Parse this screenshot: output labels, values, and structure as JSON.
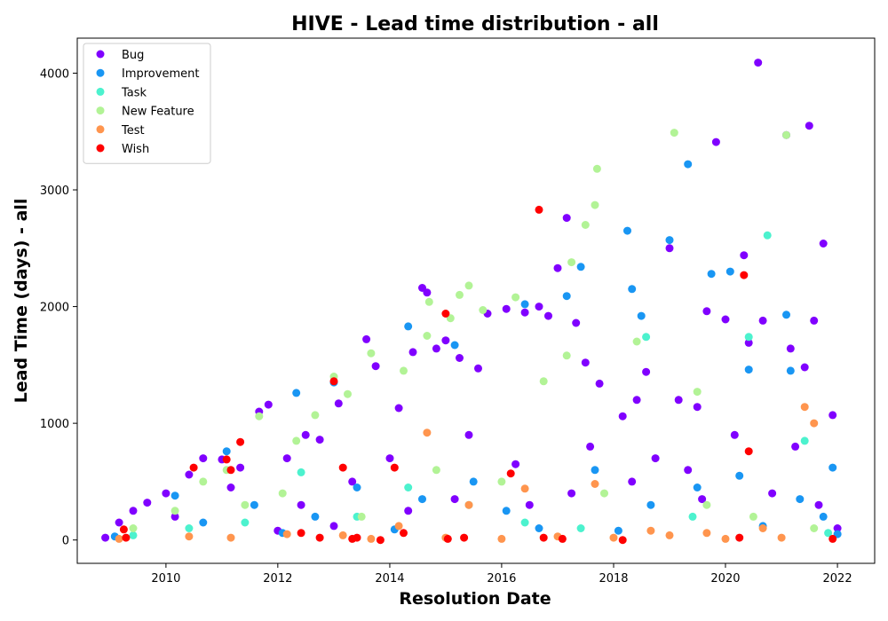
{
  "chart_data": {
    "type": "scatter",
    "title": "HIVE - Lead time distribution - all",
    "xlabel": "Resolution Date",
    "ylabel": "Lead Time (days) - all",
    "x_is_date": true,
    "xlim": [
      "2008-06-01",
      "2022-09-01"
    ],
    "ylim": [
      -200,
      4300
    ],
    "xticks": [
      "2010",
      "2012",
      "2014",
      "2016",
      "2018",
      "2020",
      "2022"
    ],
    "yticks": [
      "0",
      "1000",
      "2000",
      "3000",
      "4000"
    ],
    "grid": false,
    "legend_position": "top-left",
    "series": [
      {
        "name": "Bug",
        "color": "#8000ff",
        "points": [
          [
            "2008-12-01",
            20
          ],
          [
            "2009-03-01",
            150
          ],
          [
            "2009-06-01",
            250
          ],
          [
            "2009-09-01",
            320
          ],
          [
            "2010-01-01",
            400
          ],
          [
            "2010-06-01",
            560
          ],
          [
            "2010-09-01",
            700
          ],
          [
            "2011-01-01",
            690
          ],
          [
            "2011-05-01",
            620
          ],
          [
            "2011-09-01",
            1100
          ],
          [
            "2011-11-01",
            1160
          ],
          [
            "2012-03-01",
            700
          ],
          [
            "2012-07-01",
            900
          ],
          [
            "2012-10-01",
            860
          ],
          [
            "2013-02-01",
            1170
          ],
          [
            "2013-08-01",
            1720
          ],
          [
            "2013-10-01",
            1490
          ],
          [
            "2014-03-01",
            1130
          ],
          [
            "2014-06-01",
            1610
          ],
          [
            "2014-08-01",
            2160
          ],
          [
            "2014-09-01",
            2120
          ],
          [
            "2014-11-01",
            1640
          ],
          [
            "2015-01-01",
            1710
          ],
          [
            "2015-04-01",
            1560
          ],
          [
            "2015-08-01",
            1470
          ],
          [
            "2015-10-01",
            1940
          ],
          [
            "2016-02-01",
            1980
          ],
          [
            "2016-06-01",
            1950
          ],
          [
            "2016-09-01",
            2000
          ],
          [
            "2016-11-01",
            1920
          ],
          [
            "2017-01-01",
            2330
          ],
          [
            "2017-03-01",
            2760
          ],
          [
            "2017-05-01",
            1860
          ],
          [
            "2017-07-01",
            1520
          ],
          [
            "2017-10-01",
            1340
          ],
          [
            "2018-03-01",
            1060
          ],
          [
            "2018-06-01",
            1200
          ],
          [
            "2018-08-01",
            1440
          ],
          [
            "2019-01-01",
            2500
          ],
          [
            "2019-03-01",
            1200
          ],
          [
            "2019-07-01",
            1140
          ],
          [
            "2019-09-01",
            1960
          ],
          [
            "2019-11-01",
            3410
          ],
          [
            "2020-01-01",
            1890
          ],
          [
            "2020-05-01",
            2440
          ],
          [
            "2020-06-01",
            1690
          ],
          [
            "2020-08-01",
            4090
          ],
          [
            "2020-09-01",
            1880
          ],
          [
            "2021-02-01",
            3470
          ],
          [
            "2021-03-01",
            1640
          ],
          [
            "2021-06-01",
            1480
          ],
          [
            "2021-07-01",
            3550
          ],
          [
            "2021-08-01",
            1880
          ],
          [
            "2021-10-01",
            2540
          ],
          [
            "2021-12-01",
            1070
          ],
          [
            "2010-03-01",
            200
          ],
          [
            "2011-03-01",
            450
          ],
          [
            "2012-06-01",
            300
          ],
          [
            "2013-05-01",
            500
          ],
          [
            "2014-01-01",
            700
          ],
          [
            "2015-06-01",
            900
          ],
          [
            "2016-04-01",
            650
          ],
          [
            "2017-08-01",
            800
          ],
          [
            "2018-10-01",
            700
          ],
          [
            "2019-05-01",
            600
          ],
          [
            "2020-03-01",
            900
          ],
          [
            "2021-04-01",
            800
          ],
          [
            "2012-01-01",
            80
          ],
          [
            "2013-01-01",
            120
          ],
          [
            "2014-05-01",
            250
          ],
          [
            "2015-03-01",
            350
          ],
          [
            "2016-07-01",
            300
          ],
          [
            "2017-04-01",
            400
          ],
          [
            "2018-05-01",
            500
          ],
          [
            "2019-08-01",
            350
          ],
          [
            "2020-11-01",
            400
          ],
          [
            "2021-09-01",
            300
          ],
          [
            "2022-01-01",
            100
          ]
        ]
      },
      {
        "name": "Improvement",
        "color": "#1996f3",
        "points": [
          [
            "2009-02-01",
            30
          ],
          [
            "2010-03-01",
            380
          ],
          [
            "2011-02-01",
            760
          ],
          [
            "2012-05-01",
            1260
          ],
          [
            "2013-01-01",
            1350
          ],
          [
            "2014-05-01",
            1830
          ],
          [
            "2015-03-01",
            1670
          ],
          [
            "2016-06-01",
            2020
          ],
          [
            "2017-06-01",
            2340
          ],
          [
            "2017-03-01",
            2090
          ],
          [
            "2018-04-01",
            2650
          ],
          [
            "2018-05-01",
            2150
          ],
          [
            "2018-07-01",
            1920
          ],
          [
            "2019-01-01",
            2570
          ],
          [
            "2019-05-01",
            3220
          ],
          [
            "2019-10-01",
            2280
          ],
          [
            "2020-02-01",
            2300
          ],
          [
            "2020-06-01",
            1460
          ],
          [
            "2021-02-01",
            1930
          ],
          [
            "2021-03-01",
            1450
          ],
          [
            "2021-12-01",
            620
          ],
          [
            "2022-01-01",
            50
          ],
          [
            "2010-09-01",
            150
          ],
          [
            "2011-08-01",
            300
          ],
          [
            "2012-09-01",
            200
          ],
          [
            "2013-06-01",
            450
          ],
          [
            "2014-08-01",
            350
          ],
          [
            "2015-07-01",
            500
          ],
          [
            "2016-02-01",
            250
          ],
          [
            "2017-09-01",
            600
          ],
          [
            "2018-09-01",
            300
          ],
          [
            "2019-07-01",
            450
          ],
          [
            "2020-04-01",
            550
          ],
          [
            "2021-05-01",
            350
          ],
          [
            "2012-02-01",
            60
          ],
          [
            "2014-02-01",
            90
          ],
          [
            "2016-09-01",
            100
          ],
          [
            "2018-02-01",
            80
          ],
          [
            "2020-09-01",
            120
          ],
          [
            "2021-10-01",
            200
          ]
        ]
      },
      {
        "name": "Task",
        "color": "#4cf2ce",
        "points": [
          [
            "2009-06-01",
            40
          ],
          [
            "2010-06-01",
            100
          ],
          [
            "2011-06-01",
            150
          ],
          [
            "2012-06-01",
            580
          ],
          [
            "2013-06-01",
            200
          ],
          [
            "2014-05-01",
            450
          ],
          [
            "2015-06-01",
            300
          ],
          [
            "2016-06-01",
            150
          ],
          [
            "2017-06-01",
            100
          ],
          [
            "2018-08-01",
            1740
          ],
          [
            "2019-06-01",
            200
          ],
          [
            "2020-06-01",
            1740
          ],
          [
            "2020-10-01",
            2610
          ],
          [
            "2021-06-01",
            850
          ],
          [
            "2021-11-01",
            60
          ]
        ]
      },
      {
        "name": "New Feature",
        "color": "#b2f396",
        "points": [
          [
            "2009-06-01",
            100
          ],
          [
            "2010-03-01",
            250
          ],
          [
            "2010-09-01",
            500
          ],
          [
            "2011-02-01",
            600
          ],
          [
            "2011-09-01",
            1060
          ],
          [
            "2012-05-01",
            850
          ],
          [
            "2012-09-01",
            1070
          ],
          [
            "2013-01-01",
            1400
          ],
          [
            "2013-04-01",
            1250
          ],
          [
            "2013-09-01",
            1600
          ],
          [
            "2014-04-01",
            1450
          ],
          [
            "2014-09-01",
            1750
          ],
          [
            "2014-09-15",
            2040
          ],
          [
            "2015-02-01",
            1900
          ],
          [
            "2015-04-01",
            2100
          ],
          [
            "2015-06-01",
            2180
          ],
          [
            "2015-09-01",
            1970
          ],
          [
            "2016-04-01",
            2080
          ],
          [
            "2016-10-01",
            1360
          ],
          [
            "2017-03-01",
            1580
          ],
          [
            "2017-04-01",
            2380
          ],
          [
            "2017-07-01",
            2700
          ],
          [
            "2017-09-01",
            2870
          ],
          [
            "2017-09-15",
            3180
          ],
          [
            "2018-06-01",
            1700
          ],
          [
            "2019-02-01",
            3490
          ],
          [
            "2019-07-01",
            1270
          ],
          [
            "2021-02-01",
            3470
          ],
          [
            "2011-06-01",
            300
          ],
          [
            "2012-02-01",
            400
          ],
          [
            "2013-07-01",
            200
          ],
          [
            "2014-11-01",
            600
          ],
          [
            "2016-01-01",
            500
          ],
          [
            "2017-11-01",
            400
          ],
          [
            "2019-09-01",
            300
          ],
          [
            "2020-07-01",
            200
          ],
          [
            "2021-08-01",
            100
          ]
        ]
      },
      {
        "name": "Test",
        "color": "#ff954e",
        "points": [
          [
            "2009-03-01",
            10
          ],
          [
            "2010-06-01",
            30
          ],
          [
            "2011-03-01",
            20
          ],
          [
            "2012-03-01",
            50
          ],
          [
            "2013-03-01",
            40
          ],
          [
            "2014-03-01",
            120
          ],
          [
            "2014-09-01",
            920
          ],
          [
            "2015-06-01",
            300
          ],
          [
            "2016-06-01",
            440
          ],
          [
            "2017-09-01",
            480
          ],
          [
            "2018-09-01",
            80
          ],
          [
            "2019-09-01",
            60
          ],
          [
            "2020-09-01",
            100
          ],
          [
            "2021-06-01",
            1140
          ],
          [
            "2021-08-01",
            1000
          ],
          [
            "2013-09-01",
            10
          ],
          [
            "2015-01-01",
            20
          ],
          [
            "2016-01-01",
            10
          ],
          [
            "2017-01-01",
            30
          ],
          [
            "2018-01-01",
            20
          ],
          [
            "2019-01-01",
            40
          ],
          [
            "2020-01-01",
            10
          ],
          [
            "2021-01-01",
            20
          ]
        ]
      },
      {
        "name": "Wish",
        "color": "#ff0000",
        "points": [
          [
            "2009-04-01",
            90
          ],
          [
            "2009-04-15",
            20
          ],
          [
            "2010-07-01",
            620
          ],
          [
            "2011-02-01",
            690
          ],
          [
            "2011-03-01",
            600
          ],
          [
            "2011-05-01",
            840
          ],
          [
            "2012-06-01",
            60
          ],
          [
            "2012-10-01",
            20
          ],
          [
            "2013-01-01",
            1360
          ],
          [
            "2013-03-01",
            620
          ],
          [
            "2013-05-01",
            10
          ],
          [
            "2013-06-01",
            20
          ],
          [
            "2013-11-01",
            0
          ],
          [
            "2014-02-01",
            620
          ],
          [
            "2014-04-01",
            60
          ],
          [
            "2015-01-01",
            1940
          ],
          [
            "2015-01-15",
            10
          ],
          [
            "2015-05-01",
            20
          ],
          [
            "2016-03-01",
            570
          ],
          [
            "2016-09-01",
            2830
          ],
          [
            "2016-10-01",
            20
          ],
          [
            "2017-02-01",
            10
          ],
          [
            "2018-03-01",
            0
          ],
          [
            "2020-04-01",
            20
          ],
          [
            "2020-05-01",
            2270
          ],
          [
            "2020-06-01",
            760
          ],
          [
            "2021-12-01",
            10
          ]
        ]
      }
    ]
  }
}
